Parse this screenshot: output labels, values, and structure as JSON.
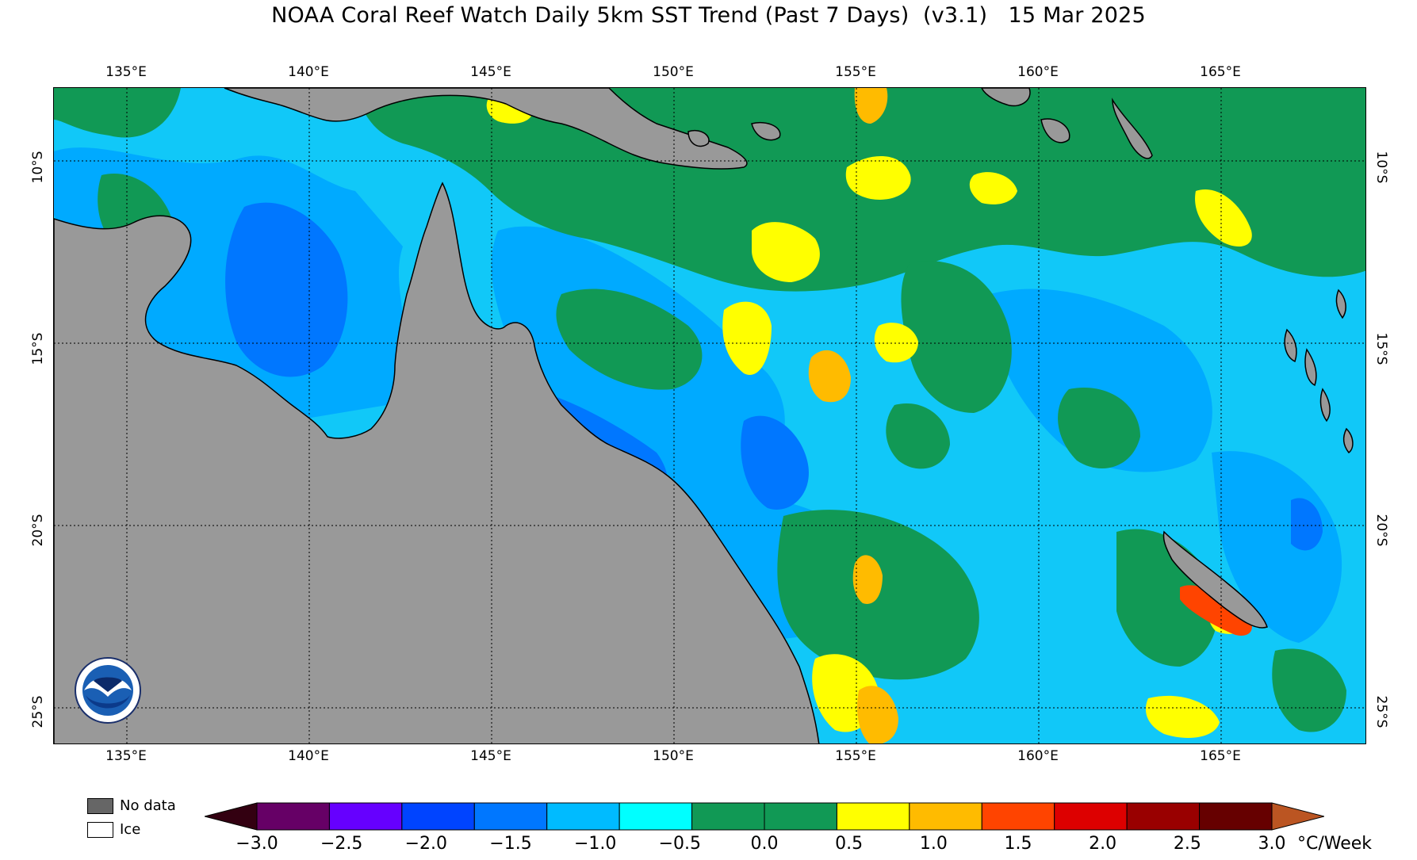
{
  "title": "NOAA Coral Reef Watch Daily 5km SST Trend (Past 7 Days)  (v3.1)   15 Mar 2025",
  "map": {
    "lon_labels": [
      "135°E",
      "140°E",
      "145°E",
      "150°E",
      "155°E",
      "160°E",
      "165°E"
    ],
    "lon_values": [
      135,
      140,
      145,
      150,
      155,
      160,
      165
    ],
    "lat_labels_left": [
      "10°S",
      "15°S",
      "20°S",
      "25°S"
    ],
    "lat_labels_right": [
      "10°S",
      "15°S",
      "20°S",
      "25°S"
    ],
    "lat_values": [
      -10,
      -15,
      -20,
      -25
    ],
    "extent": {
      "lon_min": 133,
      "lon_max": 169,
      "lat_max": -7.8,
      "lat_min": -25.9
    },
    "land_color": "#999999",
    "icon": "noaa-logo"
  },
  "legend": {
    "no_data_label": "No data",
    "ice_label": "Ice",
    "no_data_color": "#666666",
    "ice_color": "#ffffff"
  },
  "colorbar": {
    "ticks": [
      "−3.0",
      "−2.5",
      "−2.0",
      "−1.5",
      "−1.0",
      "−0.5",
      "0.0",
      "0.5",
      "1.0",
      "1.5",
      "2.0",
      "2.5",
      "3.0"
    ],
    "unit": "°C/Week",
    "colors": [
      "#660066",
      "#6600ff",
      "#0044ff",
      "#0077ff",
      "#00bbff",
      "#00ffff",
      "#119955",
      "#119955",
      "#ffff00",
      "#ffbb00",
      "#ff4400",
      "#dd0000",
      "#990000",
      "#660000"
    ],
    "under_color": "#330011",
    "over_color": "#bb5522"
  }
}
